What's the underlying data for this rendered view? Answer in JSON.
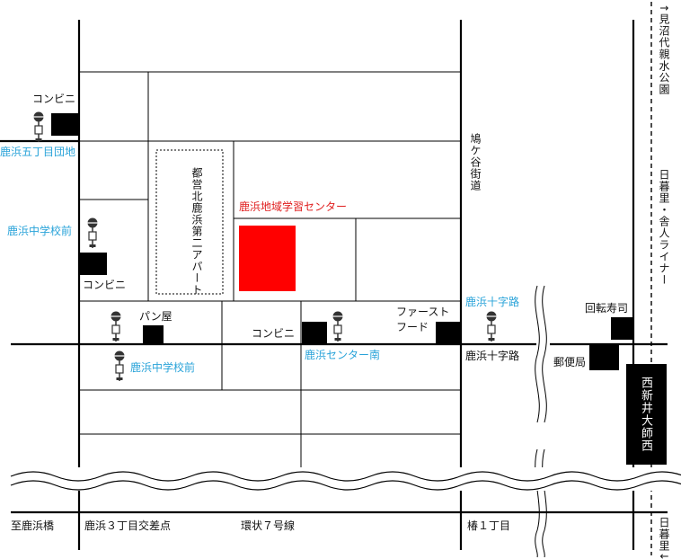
{
  "map": {
    "colors": {
      "road": "#000000",
      "bus_stop_label": "#29a3d9",
      "facility": "#ff0000",
      "facility_label": "#e02020",
      "store": "#000000"
    },
    "roads": {
      "kamogaya": "鳩ケ谷街道",
      "kanjo7": "環状７号線",
      "line": "日暮里・舎人ライナー"
    },
    "directions": {
      "to_minumadai": "↑見沼代親水公園",
      "to_shikahamabashi": "至鹿浜橋",
      "to_nippori": "日暮里↓"
    },
    "intersections": {
      "shikahama3": "鹿浜３丁目交差点",
      "tsubaki1": "椿１丁目",
      "shikahama_juji": "鹿浜十字路"
    },
    "bus_stops": {
      "gochome": "鹿浜五丁目団地",
      "chugakko_north": "鹿浜中学校前",
      "chugakko_south": "鹿浜中学校前",
      "center_minami": "鹿浜センター南",
      "juji": "鹿浜十字路"
    },
    "facility": {
      "label": "鹿浜地域学習センター"
    },
    "apartment": {
      "label": "都営北鹿浜第二アパート"
    },
    "stores": {
      "konbini_1": "コンビニ",
      "konbini_2": "コンビニ",
      "konbini_3": "コンビニ",
      "bakery": "パン屋",
      "fast_food": "ファースト\nフード",
      "sushi": "回転寿司",
      "post_office": "郵便局"
    },
    "station": {
      "label": "西新井大師西"
    }
  }
}
